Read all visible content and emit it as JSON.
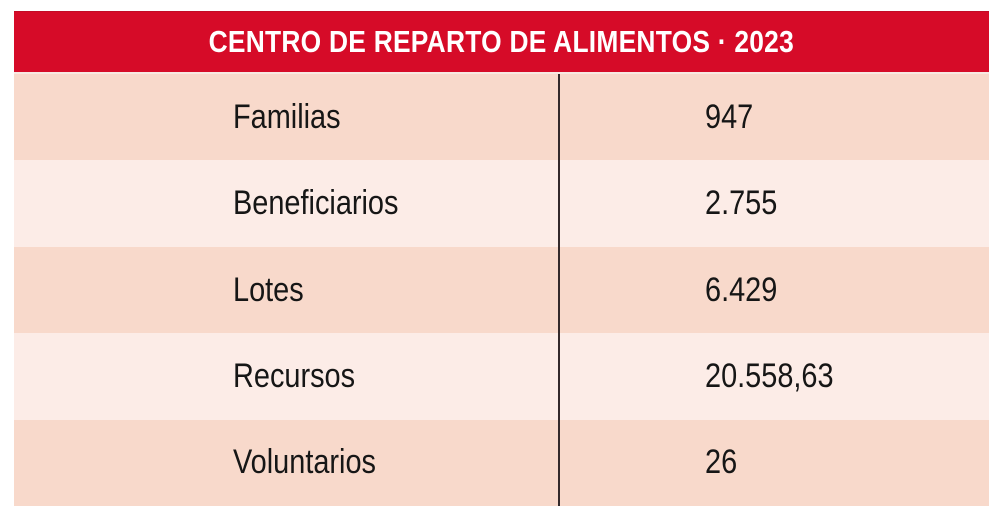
{
  "header": {
    "title": "CENTRO DE REPARTO DE ALIMENTOS · 2023"
  },
  "table": {
    "rows": [
      {
        "label": "Familias",
        "value": "947"
      },
      {
        "label": "Beneficiarios",
        "value": "2.755"
      },
      {
        "label": "Lotes",
        "value": "6.429"
      },
      {
        "label": "Recursos",
        "value": "20.558,63"
      },
      {
        "label": "Voluntarios",
        "value": "26"
      }
    ]
  },
  "chart_data": {
    "type": "table",
    "title": "CENTRO DE REPARTO DE ALIMENTOS · 2023",
    "categories": [
      "Familias",
      "Beneficiarios",
      "Lotes",
      "Recursos",
      "Voluntarios"
    ],
    "values": [
      947,
      2755,
      6429,
      20558.63,
      26
    ],
    "values_display": [
      "947",
      "2.755",
      "6.429",
      "20.558,63",
      "26"
    ],
    "number_format": "es-ES",
    "legend_position": "none",
    "grid": false
  },
  "colors": {
    "header_bg": "#d60b28",
    "header_text": "#ffffff",
    "row_odd_bg": "#f8d9cb",
    "row_even_bg": "#fcece7",
    "row_text": "#161616",
    "divider": "#33292b",
    "page_bg": "#ffffff"
  }
}
